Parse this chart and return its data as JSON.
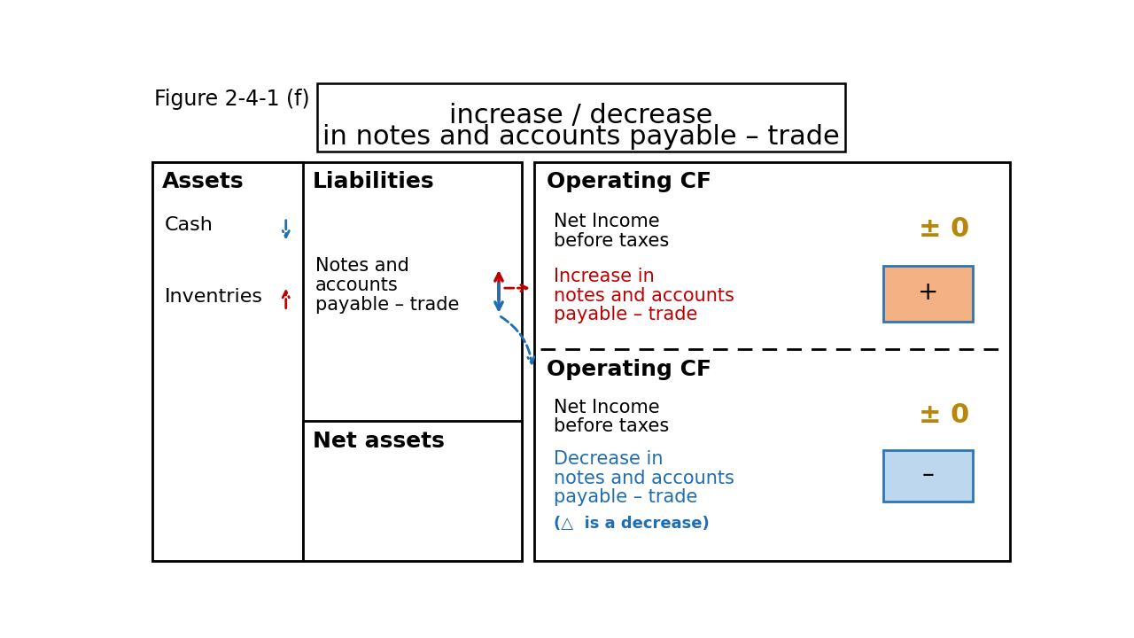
{
  "title_label": "Figure 2-4-1 (f)",
  "title_text_line1": "increase / decrease",
  "title_text_line2": "in notes and accounts payable – trade",
  "bg_color": "#ffffff",
  "black": "#000000",
  "red_color": "#c00000",
  "blue_color": "#1f6eb4",
  "gold_color": "#b8860b",
  "light_blue_box": "#bdd7ee",
  "light_orange_box": "#f4b183",
  "blue_border": "#2e75b6"
}
